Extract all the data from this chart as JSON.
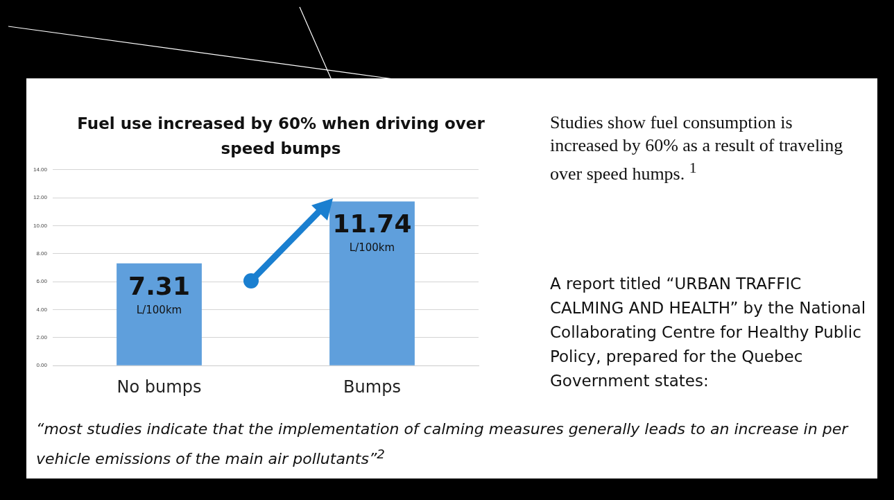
{
  "chart_data": {
    "type": "bar",
    "title": "Fuel use increased by 60% when driving over speed bumps",
    "categories": [
      "No bumps",
      "Bumps"
    ],
    "values": [
      7.31,
      11.74
    ],
    "color": "#5f9fdc",
    "ylim": [
      0,
      14
    ],
    "yticks": [
      {
        "value": 0,
        "label": "0.00"
      },
      {
        "value": 2,
        "label": "2.00"
      },
      {
        "value": 4,
        "label": "4.00"
      },
      {
        "value": 6,
        "label": "6.00"
      },
      {
        "value": 8,
        "label": "8.00"
      },
      {
        "value": 10,
        "label": "10.00"
      },
      {
        "value": 12,
        "label": "12.00"
      },
      {
        "value": 14,
        "label": "14.00"
      }
    ],
    "grid": "y",
    "legend": false,
    "value_labels": [
      "7.31 L/100km",
      "11.74 L/100km"
    ],
    "annotations": [
      "Studies show fuel consumption is increased by 60% as a result of traveling over speed humps. $^{1}$",
      "A report titled “URBAN TRAFFIC CALMING AND HEALTH” by the National Collaborating Centre for Healthy Public Policy, prepared for the Quebec Government states:",
      "“most studies indicate that the implementation of calming measures generally leads to an increase in per vehicle emissions of the main air pollutants”$^{2}$"
    ]
  }
}
